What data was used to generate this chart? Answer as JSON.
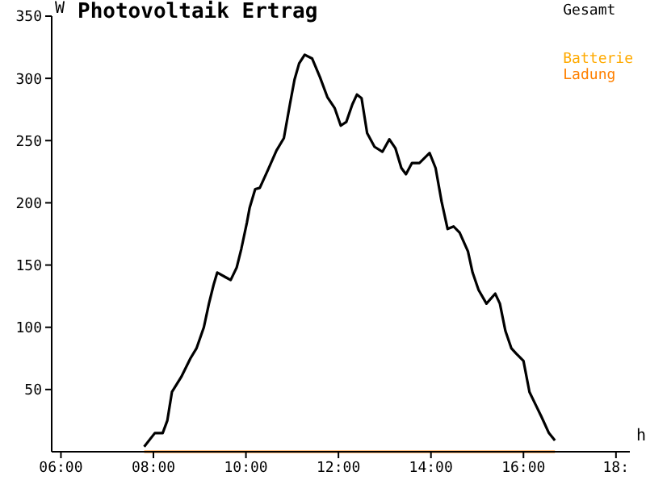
{
  "chart_data": {
    "type": "line",
    "title": "Photovoltaik Ertrag",
    "xlabel": "h",
    "ylabel": "W",
    "xlim": [
      5.8,
      18.3
    ],
    "ylim": [
      0,
      350
    ],
    "xticks": [
      {
        "value": 6,
        "label": "06:00"
      },
      {
        "value": 8,
        "label": "08:00"
      },
      {
        "value": 10,
        "label": "10:00"
      },
      {
        "value": 12,
        "label": "12:00"
      },
      {
        "value": 14,
        "label": "14:00"
      },
      {
        "value": 16,
        "label": "16:00"
      },
      {
        "value": 18,
        "label": "18:"
      }
    ],
    "yticks": [
      50,
      100,
      150,
      200,
      250,
      300,
      350
    ],
    "legend": "top right",
    "marker": "none",
    "line_style": "solid",
    "series": [
      {
        "name": "Gesamt",
        "color": "#000000",
        "x": [
          7.8,
          8.03,
          8.2,
          8.3,
          8.4,
          8.6,
          8.8,
          8.93,
          9.09,
          9.2,
          9.3,
          9.38,
          9.57,
          9.67,
          9.8,
          9.9,
          10.02,
          10.08,
          10.2,
          10.3,
          10.47,
          10.66,
          10.82,
          10.95,
          11.05,
          11.15,
          11.27,
          11.43,
          11.6,
          11.76,
          11.92,
          12.05,
          12.17,
          12.3,
          12.4,
          12.5,
          12.62,
          12.78,
          12.95,
          13.1,
          13.23,
          13.36,
          13.46,
          13.59,
          13.75,
          13.97,
          14.1,
          14.23,
          14.36,
          14.49,
          14.62,
          14.8,
          14.9,
          15.03,
          15.2,
          15.39,
          15.49,
          15.61,
          15.74,
          15.84,
          16.0,
          16.13,
          16.26,
          16.39,
          16.55,
          16.68
        ],
        "values": [
          4,
          15,
          15,
          25,
          48,
          60,
          75,
          83,
          100,
          119,
          134,
          144,
          140,
          138,
          148,
          163,
          184,
          196,
          211,
          212,
          226,
          242,
          252,
          279,
          299,
          312,
          319,
          316,
          301,
          285,
          276,
          262,
          265,
          279,
          287,
          284,
          256,
          245,
          241,
          251,
          244,
          228,
          223,
          232,
          232,
          240,
          228,
          201,
          179,
          181,
          176,
          161,
          144,
          130,
          119,
          127,
          119,
          97,
          83,
          79,
          73,
          48,
          38,
          28,
          15,
          9
        ]
      },
      {
        "name": "Batterie",
        "color": "#ffaa00"
      },
      {
        "name": "Ladung",
        "color": "#ff8000",
        "x": [
          7.8,
          16.68
        ],
        "values": [
          0,
          0
        ]
      }
    ]
  }
}
